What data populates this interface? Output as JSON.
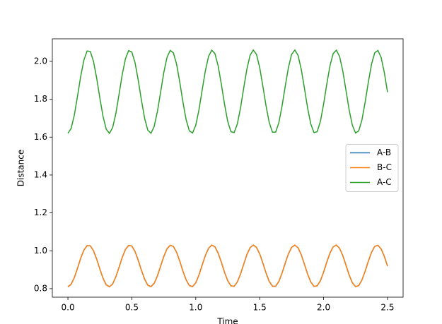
{
  "chart_data": {
    "type": "line",
    "xlabel": "Time",
    "ylabel": "Distance",
    "x": [
      0,
      0.025,
      0.05,
      0.075,
      0.1,
      0.125,
      0.15,
      0.175,
      0.2,
      0.225,
      0.25,
      0.275,
      0.3,
      0.325,
      0.35,
      0.375,
      0.4,
      0.425,
      0.45,
      0.475,
      0.5,
      0.525,
      0.55,
      0.575,
      0.6,
      0.625,
      0.65,
      0.675,
      0.7,
      0.725,
      0.75,
      0.775,
      0.8,
      0.825,
      0.85,
      0.875,
      0.9,
      0.925,
      0.95,
      0.975,
      1,
      1.025,
      1.05,
      1.075,
      1.1,
      1.125,
      1.15,
      1.175,
      1.2,
      1.225,
      1.25,
      1.275,
      1.3,
      1.325,
      1.35,
      1.375,
      1.4,
      1.425,
      1.45,
      1.475,
      1.5,
      1.525,
      1.55,
      1.575,
      1.6,
      1.625,
      1.65,
      1.675,
      1.7,
      1.725,
      1.75,
      1.775,
      1.8,
      1.825,
      1.85,
      1.875,
      1.9,
      1.925,
      1.95,
      1.975,
      2,
      2.025,
      2.05,
      2.075,
      2.1,
      2.125,
      2.15,
      2.175,
      2.2,
      2.225,
      2.25,
      2.275,
      2.3,
      2.325,
      2.35,
      2.375,
      2.4,
      2.425,
      2.45,
      2.475,
      2.5
    ],
    "series": [
      {
        "name": "A-B",
        "color": "#1f77b4",
        "values": [
          0.81,
          0.823,
          0.858,
          0.908,
          0.961,
          1.004,
          1.027,
          1.026,
          1.0,
          0.956,
          0.903,
          0.854,
          0.82,
          0.81,
          0.825,
          0.863,
          0.913,
          0.965,
          1.007,
          1.028,
          1.025,
          0.996,
          0.95,
          0.897,
          0.85,
          0.818,
          0.811,
          0.828,
          0.867,
          0.919,
          0.97,
          1.01,
          1.029,
          1.023,
          0.992,
          0.945,
          0.892,
          0.846,
          0.816,
          0.811,
          0.831,
          0.872,
          0.924,
          0.975,
          1.013,
          1.03,
          1.021,
          0.988,
          0.94,
          0.887,
          0.842,
          0.815,
          0.812,
          0.835,
          0.877,
          0.929,
          0.98,
          1.016,
          1.03,
          1.018,
          0.984,
          0.935,
          0.882,
          0.838,
          0.813,
          0.813,
          0.838,
          0.882,
          0.935,
          0.984,
          1.018,
          1.03,
          1.016,
          0.98,
          0.929,
          0.877,
          0.835,
          0.812,
          0.815,
          0.842,
          0.887,
          0.94,
          0.988,
          1.021,
          1.03,
          1.013,
          0.975,
          0.924,
          0.872,
          0.831,
          0.811,
          0.816,
          0.846,
          0.892,
          0.945,
          0.992,
          1.023,
          1.029,
          1.01,
          0.97,
          0.919
        ]
      },
      {
        "name": "B-C",
        "color": "#ff7f0e",
        "values": [
          0.81,
          0.823,
          0.858,
          0.908,
          0.961,
          1.004,
          1.027,
          1.026,
          1.0,
          0.956,
          0.903,
          0.854,
          0.82,
          0.81,
          0.825,
          0.863,
          0.913,
          0.965,
          1.007,
          1.028,
          1.025,
          0.996,
          0.95,
          0.897,
          0.85,
          0.818,
          0.811,
          0.828,
          0.867,
          0.919,
          0.97,
          1.01,
          1.029,
          1.023,
          0.992,
          0.945,
          0.892,
          0.846,
          0.816,
          0.811,
          0.831,
          0.872,
          0.924,
          0.975,
          1.013,
          1.03,
          1.021,
          0.988,
          0.94,
          0.887,
          0.842,
          0.815,
          0.812,
          0.835,
          0.877,
          0.929,
          0.98,
          1.016,
          1.03,
          1.018,
          0.984,
          0.935,
          0.882,
          0.838,
          0.813,
          0.813,
          0.838,
          0.882,
          0.935,
          0.984,
          1.018,
          1.03,
          1.016,
          0.98,
          0.929,
          0.877,
          0.835,
          0.812,
          0.815,
          0.842,
          0.887,
          0.94,
          0.988,
          1.021,
          1.03,
          1.013,
          0.975,
          0.924,
          0.872,
          0.831,
          0.811,
          0.816,
          0.846,
          0.892,
          0.945,
          0.992,
          1.023,
          1.029,
          1.01,
          0.97,
          0.919
        ]
      },
      {
        "name": "A-C",
        "color": "#2ca02c",
        "values": [
          1.62,
          1.646,
          1.716,
          1.816,
          1.921,
          2.007,
          2.055,
          2.052,
          2.0,
          1.911,
          1.805,
          1.708,
          1.641,
          1.62,
          1.651,
          1.725,
          1.827,
          1.931,
          2.014,
          2.057,
          2.049,
          1.993,
          1.901,
          1.795,
          1.699,
          1.636,
          1.621,
          1.657,
          1.735,
          1.837,
          1.941,
          2.021,
          2.058,
          2.045,
          1.985,
          1.89,
          1.784,
          1.691,
          1.633,
          1.622,
          1.663,
          1.744,
          1.848,
          1.95,
          2.026,
          2.059,
          2.041,
          1.977,
          1.88,
          1.774,
          1.683,
          1.629,
          1.624,
          1.669,
          1.754,
          1.859,
          1.959,
          2.032,
          2.06,
          2.037,
          1.968,
          1.869,
          1.764,
          1.676,
          1.626,
          1.626,
          1.676,
          1.764,
          1.869,
          1.968,
          2.037,
          2.06,
          2.032,
          1.959,
          1.859,
          1.754,
          1.669,
          1.624,
          1.629,
          1.683,
          1.774,
          1.88,
          1.977,
          2.041,
          2.059,
          2.026,
          1.95,
          1.848,
          1.744,
          1.663,
          1.622,
          1.633,
          1.691,
          1.784,
          1.89,
          1.985,
          2.045,
          2.058,
          2.021,
          1.941,
          1.837
        ]
      }
    ],
    "xlim": [
      -0.122,
      2.622
    ],
    "ylim": [
      0.755,
      2.119
    ],
    "xticks": [
      {
        "value": 0,
        "label": "0.0"
      },
      {
        "value": 0.5,
        "label": "0.5"
      },
      {
        "value": 1,
        "label": "1.0"
      },
      {
        "value": 1.5,
        "label": "1.5"
      },
      {
        "value": 2,
        "label": "2.0"
      },
      {
        "value": 2.5,
        "label": "2.5"
      }
    ],
    "yticks": [
      0.8,
      {
        "value": 1,
        "label": "1.0"
      },
      1.2,
      1.4,
      1.6,
      1.8,
      {
        "value": 2,
        "label": "2.0"
      }
    ],
    "legend": "right"
  }
}
